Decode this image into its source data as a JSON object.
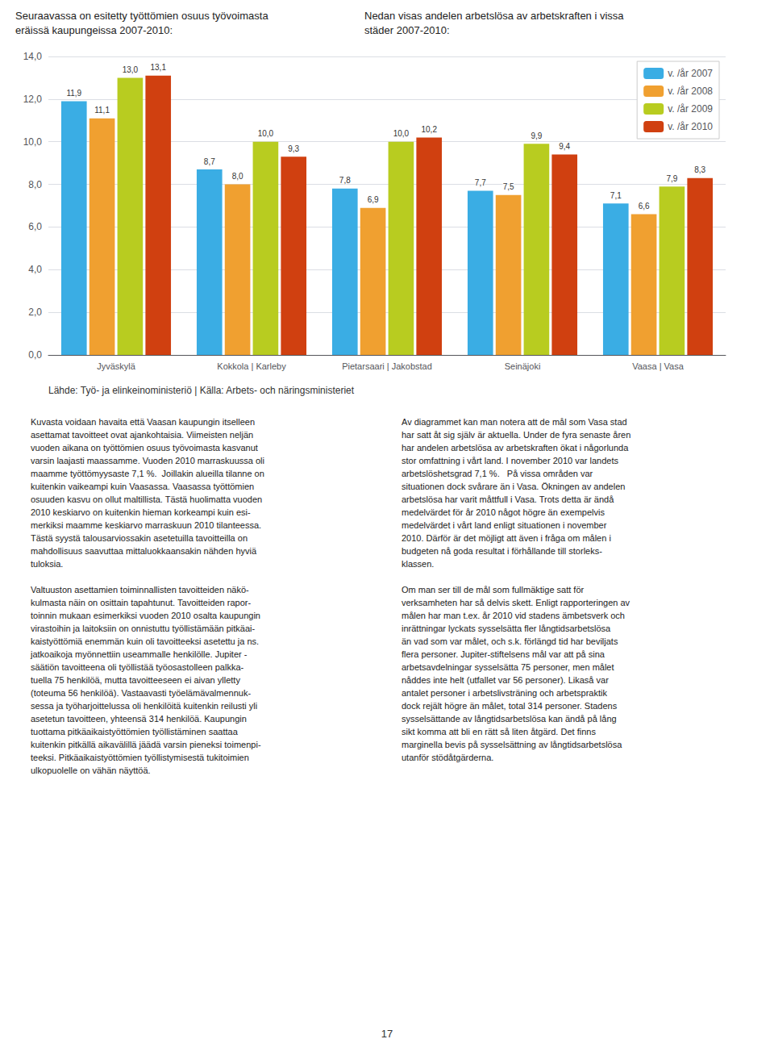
{
  "chart_data": {
    "type": "bar",
    "title": "Seuraavassa on esitetty työttömien osuus työvoimasta\neräissä kaupungeissa 2007-2010:",
    "subtitle": "Nedan visas andelen arbetslösa av arbetskraften i vissa\nstäder 2007-2010:",
    "annotations": [
      "Lähde: Työ- ja elinkeinoministeriö | Källa: Arbets- och näringsministeriet",
      "Kuvasta voidaan havaita että Vaasan kaupungin itselleen\nasettamat tavoitteet ovat ajankohtaisia. Viimeisten neljän\nvuoden aikana on työttömien osuus työvoimasta kasvanut\nvarsin laajasti maassamme. Vuoden 2010 marraskuussa oli\nmaamme työttömyysaste 7,1 %.  Joillakin alueilla tilanne on\nkuitenkin vaikeampi kuin Vaasassa. Vaasassa työttömien\nosuuden kasvu on ollut maltillista. Tästä huolimatta vuoden\n2010 keskiarvo on kuitenkin hieman korkeampi kuin esi-\nmerkiksi maamme keskiarvo marraskuun 2010 tilanteessa.\nTästä syystä talousarviossakin asetetuilla tavoitteilla on\nmahdollisuus saavuttaa mittaluokkaansakin nähden hyviä\ntuloksia.\n\nValtuuston asettamien toiminnallisten tavoitteiden näkö-\nkulmasta näin on osittain tapahtunut. Tavoitteiden rapor-\ntoinnin mukaan esimerkiksi vuoden 2010 osalta kaupungin\nvirastoihin ja laitoksiin on onnistuttu työllistämään pitkäai-\nkaistyöttömiä enemmän kuin oli tavoitteeksi asetettu ja ns.\njatkoaikoja myönnettiin useammalle henkilölle. Jupiter -\nsäätiön tavoitteena oli työllistää työosastolleen palkka-\ntuella 75 henkilöä, mutta tavoitteeseen ei aivan ylletty\n(toteuma 56 henkilöä). Vastaavasti työelämävalmennuk-\nsessa ja työharjoittelussa oli henkilöitä kuitenkin reilusti yli\nasetetun tavoitteen, yhteensä 314 henkilöä. Kaupungin\ntuottama pitkäaikaistyöttömien työllistäminen saattaa\nkuitenkin pitkällä aikavälillä jäädä varsin pieneksi toimenpi-\nteeksi. Pitkäaikaistyöttömien työllistymisestä tukitoimien\nulkopuolelle on vähän näyttöä.",
      "Av diagrammet kan man notera att de mål som Vasa stad\nhar satt åt sig själv är aktuella. Under de fyra senaste åren\nhar andelen arbetslösa av arbetskraften ökat i någorlunda\nstor omfattning i vårt land. I november 2010 var landets\narbetslöshetsgrad 7,1 %.   På vissa områden var\nsituationen dock svårare än i Vasa. Ökningen av andelen\narbetslösa har varit måttfull i Vasa. Trots detta är ändå\nmedelvärdet för år 2010 något högre än exempelvis\nmedelvärdet i vårt land enligt situationen i november\n2010. Därför är det möjligt att även i fråga om målen i\nbudgeten nå goda resultat i förhållande till storleks-\nklassen.\n\nOm man ser till de mål som fullmäktige satt för\nverksamheten har så delvis skett. Enligt rapporteringen av\nmålen har man t.ex. år 2010 vid stadens ämbetsverk och\ninrättningar lyckats sysselsätta fler långtidsarbetslösa\nän vad som var målet, och s.k. förlängd tid har beviljats\nflera personer. Jupiter-stiftelsens mål var att på sina\narbetsavdelningar sysselsätta 75 personer, men målet\nnåddes inte helt (utfallet var 56 personer). Likaså var\nantalet personer i arbetslivsträning och arbetspraktik\ndock rejält högre än målet, total 314 personer. Stadens\nsysselsättande av långtidsarbetslösa kan ändå på lång\nsikt komma att bli en rätt så liten åtgärd. Det finns\nmarginella bevis på sysselsättning av långtidsarbetslösa\nutanför stödåtgärderna.",
      "17"
    ],
    "categories": [
      "Jyväskylä",
      "Kokkola | Karleby",
      "Pietarsaari | Jakobstad",
      "Seinäjoki",
      "Vaasa | Vasa"
    ],
    "series": [
      {
        "name": "v. /år 2007",
        "color": "#3AADE4",
        "values": [
          11.9,
          8.7,
          7.8,
          7.7,
          7.1
        ],
        "value_labels": [
          "11,9",
          "8,7",
          "7,8",
          "7,7",
          "7,1"
        ]
      },
      {
        "name": "v. /år 2008",
        "color": "#F0A030",
        "values": [
          11.1,
          8.0,
          6.9,
          7.5,
          6.6
        ],
        "value_labels": [
          "11,1",
          "8,0",
          "6,9",
          "7,5",
          "6,6"
        ]
      },
      {
        "name": "v. /år 2009",
        "color": "#B8CC20",
        "values": [
          13.0,
          10.0,
          10.0,
          9.9,
          7.9
        ],
        "value_labels": [
          "13,0",
          "10,0",
          "10,0",
          "9,9",
          "7,9"
        ]
      },
      {
        "name": "v. /år 2010",
        "color": "#D04010",
        "values": [
          13.1,
          9.3,
          10.2,
          9.4,
          8.3
        ],
        "value_labels": [
          "13,1",
          "9,3",
          "10,2",
          "9,4",
          "8,3"
        ]
      }
    ],
    "ylim": [
      0,
      14.0
    ],
    "yticks": [
      {
        "value": 0.0,
        "label": "0,0"
      },
      {
        "value": 2.0,
        "label": "2,0"
      },
      {
        "value": 4.0,
        "label": "4,0"
      },
      {
        "value": 6.0,
        "label": "6,0"
      },
      {
        "value": 8.0,
        "label": "8,0"
      },
      {
        "value": 10.0,
        "label": "10,0"
      },
      {
        "value": 12.0,
        "label": "12,0"
      },
      {
        "value": 14.0,
        "label": "14,0"
      }
    ],
    "grid": true,
    "legend": "upper right",
    "data_labels": true
  }
}
